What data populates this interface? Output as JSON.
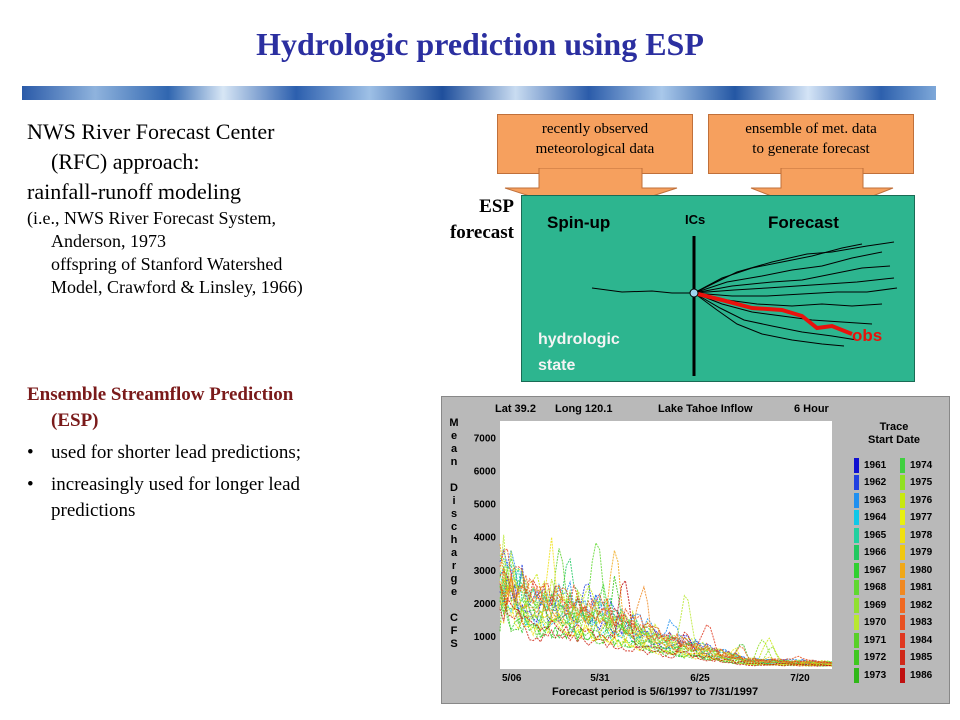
{
  "title": "Hydrologic prediction using ESP",
  "left": {
    "line1": "NWS River Forecast Center",
    "line2": "(RFC) approach:",
    "line3": "rainfall-runoff modeling",
    "note1": "(i.e., NWS River Forecast System,",
    "note2": "Anderson, 1973",
    "note3": "offspring of Stanford Watershed",
    "note4": "Model, Crawford & Linsley, 1966)",
    "esp_line1": "Ensemble Streamflow Prediction",
    "esp_line2": "(ESP)",
    "bullet1": "used for shorter lead predictions;",
    "bullet2_line1": "increasingly used for longer lead",
    "bullet2_line2": "predictions",
    "bullet_char": "•"
  },
  "diagram": {
    "callout1_line1": "recently observed",
    "callout1_line2": "meteorological data",
    "callout2_line1": "ensemble of met. data",
    "callout2_line2": "to generate forecast",
    "esp_label_line1": "ESP",
    "esp_label_line2": "forecast",
    "spinup": "Spin-up",
    "ics": "ICs",
    "forecast": "Forecast",
    "hydrologic_line1": "hydrologic",
    "hydrologic_line2": "state",
    "obs": "obs",
    "colors": {
      "box": "#2db58f",
      "callout": "#f6a05e",
      "obs": "#e8120c"
    }
  },
  "plot": {
    "header": {
      "lat": "Lat 39.2",
      "long": "Long 120.1",
      "name": "Lake Tahoe Inflow",
      "interval": "6 Hour"
    },
    "ylabel_chars": [
      "M",
      "e",
      "a",
      "n",
      "",
      "D",
      "i",
      "s",
      "c",
      "h",
      "a",
      "r",
      "g",
      "e",
      "",
      "C",
      "F",
      "S"
    ],
    "yticks": [
      "7000",
      "6000",
      "5000",
      "4000",
      "3000",
      "2000",
      "1000"
    ],
    "xticks": [
      "5/06",
      "5/31",
      "6/25",
      "7/20"
    ],
    "xlabel": "Forecast period is 5/6/1997 to 7/31/1997",
    "legend_title_line1": "Trace",
    "legend_title_line2": "Start Date",
    "legend_col1": [
      "1961",
      "1962",
      "1963",
      "1964",
      "1965",
      "1966",
      "1967",
      "1968",
      "1969",
      "1970",
      "1971",
      "1972",
      "1973"
    ],
    "legend_col2": [
      "1974",
      "1975",
      "1976",
      "1977",
      "1978",
      "1979",
      "1980",
      "1981",
      "1982",
      "1983",
      "1984",
      "1985",
      "1986"
    ],
    "legend_colors_col1": [
      "#1010d0",
      "#2040e0",
      "#2090f0",
      "#10c8e8",
      "#20d0a0",
      "#20c860",
      "#30d030",
      "#60d830",
      "#90e030",
      "#b8e830",
      "#58d028",
      "#40c820",
      "#30b818"
    ],
    "legend_colors_col2": [
      "#40d040",
      "#90e020",
      "#c8e810",
      "#e8f010",
      "#f0e010",
      "#f0c810",
      "#f0a818",
      "#f08820",
      "#f06820",
      "#e85020",
      "#e03820",
      "#d02818",
      "#c01010"
    ]
  },
  "chart_data": {
    "type": "line",
    "title": "Lake Tahoe Inflow",
    "xlabel": "Forecast period is 5/6/1997 to 7/31/1997",
    "ylabel": "Mean Discharge CFS",
    "ylim": [
      0,
      7500
    ],
    "x_ticks": [
      "5/06",
      "5/31",
      "6/25",
      "7/20"
    ],
    "series_count": 26,
    "series_names": [
      "1961",
      "1962",
      "1963",
      "1964",
      "1965",
      "1966",
      "1967",
      "1968",
      "1969",
      "1970",
      "1971",
      "1972",
      "1973",
      "1974",
      "1975",
      "1976",
      "1977",
      "1978",
      "1979",
      "1980",
      "1981",
      "1982",
      "1983",
      "1984",
      "1985",
      "1986"
    ],
    "envelope": {
      "dates": [
        "5/06",
        "5/31",
        "6/25",
        "7/20",
        "7/31"
      ],
      "typical_discharge": [
        1800,
        1500,
        700,
        200,
        150
      ],
      "peak_discharge": [
        6000,
        3500,
        2300,
        400,
        250
      ]
    }
  }
}
